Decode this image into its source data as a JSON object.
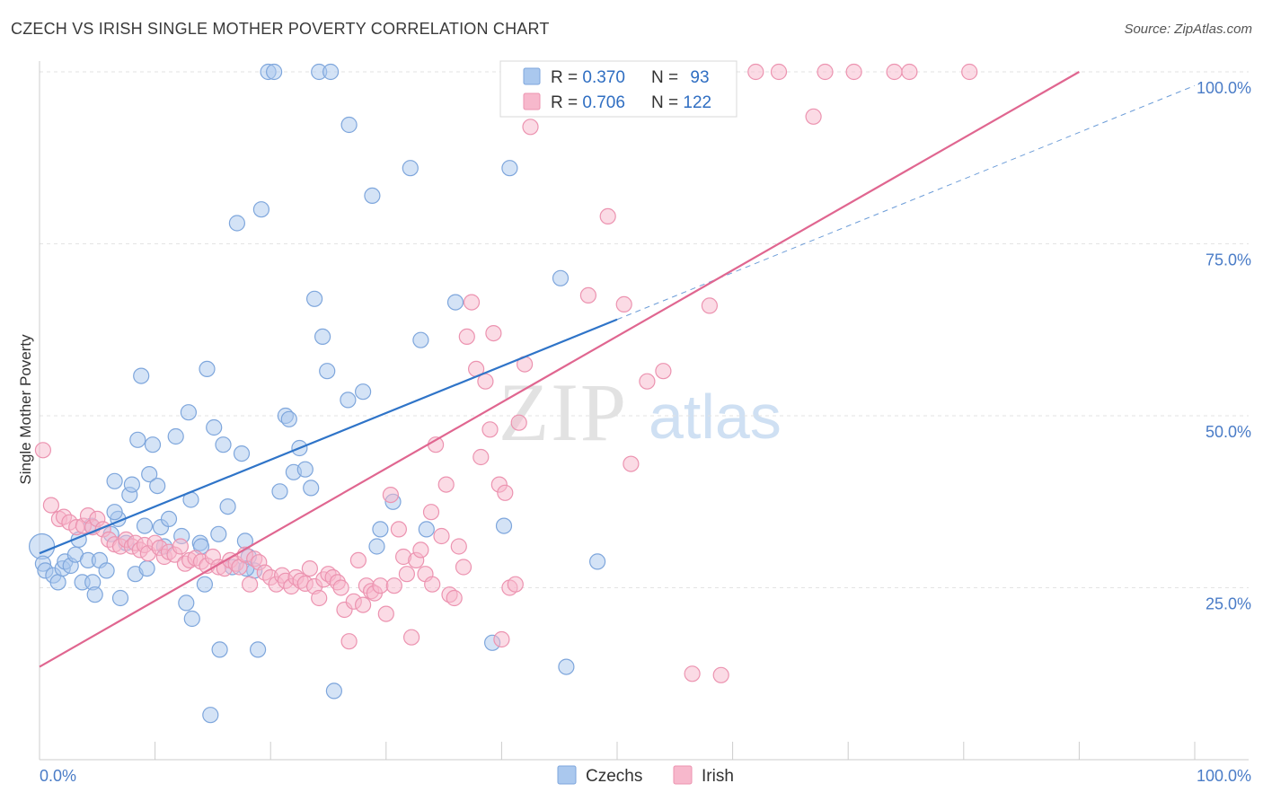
{
  "header": {
    "title": "CZECH VS IRISH SINGLE MOTHER POVERTY CORRELATION CHART",
    "source": "Source: ZipAtlas.com"
  },
  "watermark": {
    "zip": "ZIP",
    "atlas": "atlas"
  },
  "chart_data": {
    "type": "scatter",
    "title": "CZECH VS IRISH SINGLE MOTHER POVERTY CORRELATION CHART",
    "xlabel": "",
    "ylabel": "Single Mother Poverty",
    "xlim": [
      0,
      100
    ],
    "ylim": [
      0,
      100
    ],
    "x_tick_labels": [
      {
        "value": 0,
        "label": "0.0%"
      },
      {
        "value": 100,
        "label": "100.0%"
      }
    ],
    "y_tick_labels": [
      {
        "value": 25,
        "label": "25.0%"
      },
      {
        "value": 50,
        "label": "50.0%"
      },
      {
        "value": 75,
        "label": "75.0%"
      },
      {
        "value": 100,
        "label": "100.0%"
      }
    ],
    "grid": true,
    "legend_placement": "top-center",
    "colors": {
      "czechs_fill": "#aac8ee",
      "czechs_stroke": "#7ea6dc",
      "czechs_line": "#2f74c8",
      "irish_fill": "#f7b8cc",
      "irish_stroke": "#ec93b0",
      "irish_line": "#e06690",
      "value_text": "#2f6ec2",
      "label_text": "#333333"
    },
    "stats": [
      {
        "series": "Czechs",
        "r_label": "R = ",
        "r_value": "0.370",
        "n_label": "N = ",
        "n_value": "93"
      },
      {
        "series": "Irish",
        "r_label": "R = ",
        "r_value": "0.706",
        "n_label": "N = ",
        "n_value": "122"
      }
    ],
    "series": [
      {
        "name": "Czechs",
        "trend": {
          "x0": 0,
          "y0": 30,
          "x1": 50,
          "y1": 64,
          "dashed_to": [
            100,
            98
          ]
        },
        "points": [
          [
            0.2,
            31
          ],
          [
            0.3,
            28.5
          ],
          [
            0.5,
            27.5
          ],
          [
            1.2,
            26.8
          ],
          [
            1.6,
            25.8
          ],
          [
            2.0,
            27.8
          ],
          [
            2.2,
            28.8
          ],
          [
            2.7,
            28.2
          ],
          [
            3.1,
            29.8
          ],
          [
            3.4,
            32
          ],
          [
            3.7,
            25.8
          ],
          [
            4.2,
            29
          ],
          [
            4.5,
            34
          ],
          [
            4.6,
            25.8
          ],
          [
            4.8,
            24
          ],
          [
            5.2,
            29
          ],
          [
            5.8,
            27.5
          ],
          [
            6.2,
            32.8
          ],
          [
            6.5,
            40.5
          ],
          [
            6.8,
            35
          ],
          [
            7.0,
            23.5
          ],
          [
            7.5,
            31.5
          ],
          [
            7.8,
            38.5
          ],
          [
            8.0,
            40
          ],
          [
            8.3,
            27
          ],
          [
            8.5,
            46.5
          ],
          [
            8.8,
            55.8
          ],
          [
            9.1,
            34
          ],
          [
            9.5,
            41.5
          ],
          [
            9.8,
            45.8
          ],
          [
            10.2,
            39.8
          ],
          [
            10.5,
            33.8
          ],
          [
            10.8,
            31
          ],
          [
            11.2,
            35
          ],
          [
            11.8,
            47
          ],
          [
            12.3,
            32.5
          ],
          [
            12.7,
            22.8
          ],
          [
            12.9,
            50.5
          ],
          [
            13.1,
            37.8
          ],
          [
            13.2,
            20.5
          ],
          [
            13.9,
            31.5
          ],
          [
            14.3,
            25.5
          ],
          [
            14.5,
            56.8
          ],
          [
            14.8,
            6.5
          ],
          [
            15.1,
            48.3
          ],
          [
            15.5,
            32.8
          ],
          [
            15.6,
            16
          ],
          [
            15.9,
            45.8
          ],
          [
            16.3,
            36.8
          ],
          [
            16.7,
            28
          ],
          [
            17.1,
            78
          ],
          [
            17.5,
            44.5
          ],
          [
            17.8,
            31.8
          ],
          [
            18.1,
            29.5
          ],
          [
            18.6,
            27.5
          ],
          [
            19.2,
            80
          ],
          [
            18.9,
            16
          ],
          [
            19.8,
            100
          ],
          [
            20.3,
            100
          ],
          [
            20.8,
            39
          ],
          [
            21.3,
            50
          ],
          [
            21.6,
            49.5
          ],
          [
            22.0,
            41.8
          ],
          [
            22.5,
            45.3
          ],
          [
            23.0,
            42.2
          ],
          [
            23.5,
            39.5
          ],
          [
            23.8,
            67
          ],
          [
            24.2,
            100
          ],
          [
            24.5,
            61.5
          ],
          [
            24.9,
            56.5
          ],
          [
            25.2,
            100
          ],
          [
            25.5,
            10
          ],
          [
            26.8,
            92.3
          ],
          [
            26.7,
            52.3
          ],
          [
            28.0,
            53.5
          ],
          [
            28.8,
            82
          ],
          [
            29.2,
            31
          ],
          [
            29.5,
            33.5
          ],
          [
            30.6,
            37.5
          ],
          [
            32.1,
            86
          ],
          [
            33.0,
            61
          ],
          [
            33.5,
            33.5
          ],
          [
            36.0,
            66.5
          ],
          [
            39.2,
            17
          ],
          [
            40.2,
            34
          ],
          [
            40.7,
            86
          ],
          [
            45.1,
            70
          ],
          [
            45.6,
            13.5
          ],
          [
            48.3,
            28.8
          ],
          [
            17.9,
            27.8
          ],
          [
            14.0,
            31.0
          ],
          [
            6.5,
            36.0
          ],
          [
            9.3,
            27.8
          ]
        ]
      },
      {
        "name": "Irish",
        "trend": {
          "x0": 0,
          "y0": 13.5,
          "x1": 90,
          "y1": 100
        },
        "points": [
          [
            0.3,
            45
          ],
          [
            1.0,
            37
          ],
          [
            1.7,
            35
          ],
          [
            2.1,
            35.3
          ],
          [
            2.6,
            34.5
          ],
          [
            3.2,
            33.8
          ],
          [
            3.8,
            34
          ],
          [
            4.2,
            35.5
          ],
          [
            4.6,
            33.8
          ],
          [
            5.0,
            35
          ],
          [
            5.5,
            33.5
          ],
          [
            6.0,
            32
          ],
          [
            6.5,
            31.3
          ],
          [
            7.0,
            31
          ],
          [
            7.5,
            32
          ],
          [
            8.0,
            31
          ],
          [
            8.3,
            31.5
          ],
          [
            8.7,
            30.5
          ],
          [
            9.1,
            31.2
          ],
          [
            9.4,
            30
          ],
          [
            10.0,
            31.5
          ],
          [
            10.4,
            30.8
          ],
          [
            10.8,
            29.5
          ],
          [
            11.2,
            30.2
          ],
          [
            11.7,
            29.8
          ],
          [
            12.2,
            31
          ],
          [
            12.6,
            28.5
          ],
          [
            13.0,
            29
          ],
          [
            13.5,
            29.3
          ],
          [
            14.0,
            28.8
          ],
          [
            14.5,
            28.2
          ],
          [
            15.0,
            29.5
          ],
          [
            15.5,
            28
          ],
          [
            16.0,
            27.8
          ],
          [
            16.5,
            29
          ],
          [
            17.0,
            28.5
          ],
          [
            17.3,
            28
          ],
          [
            17.8,
            29.8
          ],
          [
            18.2,
            25.5
          ],
          [
            18.6,
            29.2
          ],
          [
            19.0,
            28.7
          ],
          [
            19.5,
            27.2
          ],
          [
            20.0,
            26.5
          ],
          [
            20.5,
            25.5
          ],
          [
            21.0,
            26.8
          ],
          [
            21.3,
            26
          ],
          [
            21.8,
            25.2
          ],
          [
            22.2,
            26.5
          ],
          [
            22.6,
            26
          ],
          [
            23.0,
            25.6
          ],
          [
            23.4,
            27.8
          ],
          [
            23.8,
            25.2
          ],
          [
            24.2,
            23.5
          ],
          [
            24.6,
            26.2
          ],
          [
            25.0,
            27
          ],
          [
            25.4,
            26.5
          ],
          [
            25.8,
            25.8
          ],
          [
            26.1,
            25
          ],
          [
            26.4,
            21.8
          ],
          [
            26.8,
            17.2
          ],
          [
            27.2,
            23
          ],
          [
            27.6,
            29
          ],
          [
            28.0,
            22.5
          ],
          [
            28.3,
            25.3
          ],
          [
            28.7,
            24.5
          ],
          [
            29.0,
            24.2
          ],
          [
            29.5,
            25.3
          ],
          [
            30.0,
            21.2
          ],
          [
            30.4,
            38.5
          ],
          [
            30.7,
            25.3
          ],
          [
            31.1,
            33.5
          ],
          [
            31.5,
            29.5
          ],
          [
            31.8,
            27
          ],
          [
            32.2,
            17.8
          ],
          [
            32.6,
            29
          ],
          [
            33.0,
            30.5
          ],
          [
            33.4,
            27
          ],
          [
            33.9,
            36
          ],
          [
            34.3,
            45.8
          ],
          [
            34.8,
            32.5
          ],
          [
            35.2,
            40
          ],
          [
            35.5,
            24
          ],
          [
            35.9,
            23.5
          ],
          [
            36.3,
            31
          ],
          [
            36.7,
            28
          ],
          [
            37.0,
            61.5
          ],
          [
            37.4,
            66.5
          ],
          [
            37.8,
            56.8
          ],
          [
            38.2,
            44
          ],
          [
            38.6,
            55
          ],
          [
            39.0,
            48
          ],
          [
            39.3,
            62
          ],
          [
            39.8,
            40
          ],
          [
            40.3,
            38.8
          ],
          [
            40.7,
            25
          ],
          [
            41.2,
            25.5
          ],
          [
            41.5,
            49
          ],
          [
            42.0,
            57.5
          ],
          [
            42.5,
            92
          ],
          [
            43.3,
            100
          ],
          [
            44.2,
            100
          ],
          [
            45.1,
            100
          ],
          [
            46.0,
            100
          ],
          [
            47.0,
            100
          ],
          [
            47.5,
            67.5
          ],
          [
            48.1,
            100
          ],
          [
            49.2,
            79
          ],
          [
            50.6,
            66.2
          ],
          [
            51.2,
            43
          ],
          [
            52.6,
            55
          ],
          [
            54.0,
            56.5
          ],
          [
            55.0,
            100
          ],
          [
            55.7,
            100
          ],
          [
            56.5,
            12.5
          ],
          [
            58.0,
            66
          ],
          [
            59.0,
            12.3
          ],
          [
            62.0,
            100
          ],
          [
            64.0,
            100
          ],
          [
            67.0,
            93.5
          ],
          [
            68.0,
            100
          ],
          [
            70.5,
            100
          ],
          [
            74.0,
            100
          ],
          [
            75.3,
            100
          ],
          [
            80.5,
            100
          ],
          [
            40.0,
            17.5
          ],
          [
            34.0,
            25.5
          ]
        ]
      }
    ]
  },
  "legend_bottom": [
    {
      "label": "Czechs"
    },
    {
      "label": "Irish"
    }
  ]
}
